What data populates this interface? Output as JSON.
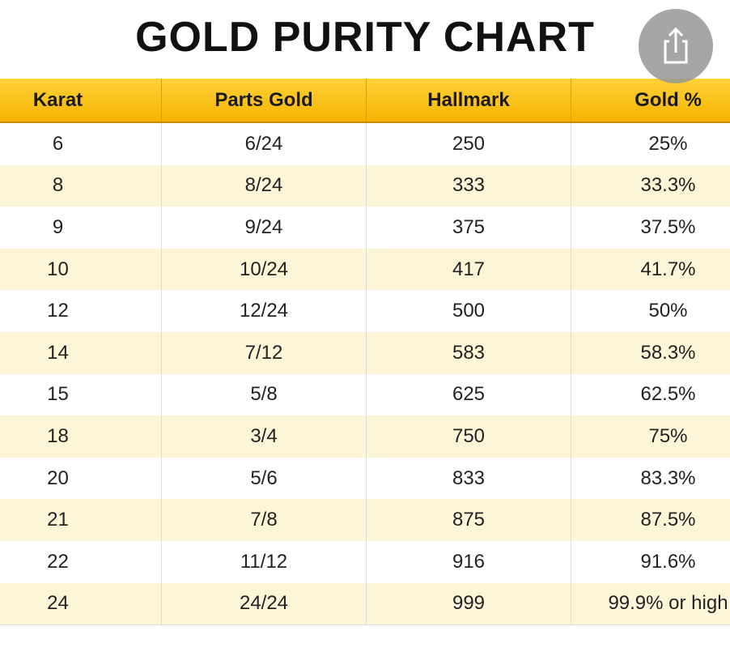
{
  "title": "GOLD PURITY CHART",
  "table": {
    "header": [
      "Karat",
      "Parts Gold",
      "Hallmark",
      "Gold %"
    ],
    "rows": [
      [
        "6",
        "6/24",
        "250",
        "25%"
      ],
      [
        "8",
        "8/24",
        "333",
        "33.3%"
      ],
      [
        "9",
        "9/24",
        "375",
        "37.5%"
      ],
      [
        "10",
        "10/24",
        "417",
        "41.7%"
      ],
      [
        "12",
        "12/24",
        "500",
        "50%"
      ],
      [
        "14",
        "7/12",
        "583",
        "58.3%"
      ],
      [
        "15",
        "5/8",
        "625",
        "62.5%"
      ],
      [
        "18",
        "3/4",
        "750",
        "75%"
      ],
      [
        "20",
        "5/6",
        "833",
        "83.3%"
      ],
      [
        "21",
        "7/8",
        "875",
        "87.5%"
      ],
      [
        "22",
        "11/12",
        "916",
        "91.6%"
      ],
      [
        "24",
        "24/24",
        "999",
        "99.9% or high"
      ]
    ]
  }
}
